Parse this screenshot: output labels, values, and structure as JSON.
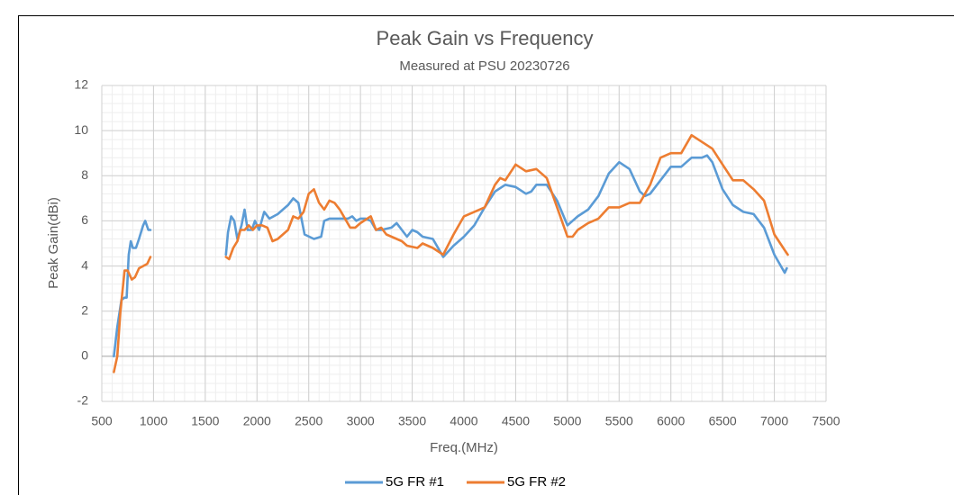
{
  "chart_data": {
    "type": "line",
    "title": "Peak Gain vs Frequency",
    "subtitle": "Measured at PSU 20230726",
    "x_label": "Freq.(MHz)",
    "y_label": "Peak Gain(dBi)",
    "xlim": [
      500,
      7500
    ],
    "xticks": [
      500,
      1000,
      1500,
      2000,
      2500,
      3000,
      3500,
      4000,
      4500,
      5000,
      5500,
      6000,
      6500,
      7000,
      7500
    ],
    "ylim": [
      -2,
      12
    ],
    "yticks": [
      -2,
      0,
      2,
      4,
      6,
      8,
      10,
      12
    ],
    "grid": true,
    "minor_grid": true,
    "legend": "bottom",
    "series": [
      {
        "name": "5G FR #1",
        "color": "#5b9bd5",
        "x": [
          617,
          650,
          690,
          720,
          740,
          760,
          780,
          800,
          830,
          860,
          900,
          920,
          950,
          970,
          null,
          1700,
          1720,
          1750,
          1780,
          1810,
          1850,
          1880,
          1910,
          1950,
          1980,
          2020,
          2070,
          2120,
          2200,
          2300,
          2350,
          2400,
          2460,
          2550,
          2620,
          2650,
          2700,
          2800,
          2880,
          2920,
          2960,
          3000,
          3050,
          3100,
          3150,
          3200,
          3300,
          3350,
          3400,
          3450,
          3500,
          3550,
          3600,
          3700,
          3750,
          3800,
          3900,
          4000,
          4100,
          4200,
          4300,
          4400,
          4500,
          4600,
          4650,
          4700,
          4800,
          4900,
          5000,
          5050,
          5100,
          5200,
          5300,
          5400,
          5500,
          5600,
          5700,
          5750,
          5800,
          5900,
          6000,
          6100,
          6200,
          6300,
          6350,
          6400,
          6500,
          6600,
          6700,
          6800,
          6900,
          7000,
          7100,
          7120
        ],
        "values": [
          0,
          1.3,
          2.5,
          2.6,
          2.6,
          4.5,
          5.1,
          4.8,
          4.8,
          5.2,
          5.8,
          6.0,
          5.6,
          5.6,
          null,
          4.5,
          5.5,
          6.2,
          6.0,
          5.2,
          5.8,
          6.5,
          5.6,
          5.6,
          6.0,
          5.6,
          6.4,
          6.1,
          6.3,
          6.7,
          7.0,
          6.8,
          5.4,
          5.2,
          5.3,
          6.0,
          6.1,
          6.1,
          6.1,
          6.2,
          6.0,
          6.1,
          6.1,
          6.0,
          5.6,
          5.6,
          5.7,
          5.9,
          5.6,
          5.3,
          5.6,
          5.5,
          5.3,
          5.2,
          4.8,
          4.4,
          4.9,
          5.3,
          5.8,
          6.6,
          7.3,
          7.6,
          7.5,
          7.2,
          7.3,
          7.6,
          7.6,
          6.9,
          5.8,
          6.0,
          6.2,
          6.5,
          7.1,
          8.1,
          8.6,
          8.3,
          7.3,
          7.1,
          7.2,
          7.8,
          8.4,
          8.4,
          8.8,
          8.8,
          8.9,
          8.6,
          7.4,
          6.7,
          6.4,
          6.3,
          5.7,
          4.5,
          3.7,
          3.9
        ]
      },
      {
        "name": "5G FR #2",
        "color": "#ed7d31",
        "x": [
          617,
          650,
          680,
          720,
          750,
          790,
          820,
          860,
          900,
          940,
          970,
          null,
          1700,
          1730,
          1770,
          1810,
          1840,
          1880,
          1920,
          1960,
          2000,
          2050,
          2100,
          2150,
          2200,
          2300,
          2350,
          2400,
          2450,
          2500,
          2550,
          2600,
          2650,
          2700,
          2750,
          2800,
          2900,
          2950,
          3000,
          3100,
          3150,
          3200,
          3250,
          3300,
          3400,
          3450,
          3550,
          3600,
          3700,
          3800,
          3900,
          4000,
          4100,
          4200,
          4300,
          4350,
          4400,
          4500,
          4600,
          4700,
          4800,
          4900,
          5000,
          5050,
          5100,
          5200,
          5300,
          5400,
          5500,
          5600,
          5700,
          5800,
          5900,
          6000,
          6100,
          6200,
          6300,
          6400,
          6500,
          6600,
          6700,
          6800,
          6900,
          7000,
          7100,
          7130
        ],
        "values": [
          -0.7,
          0.0,
          2.0,
          3.8,
          3.8,
          3.4,
          3.5,
          3.9,
          4.0,
          4.1,
          4.4,
          null,
          4.4,
          4.3,
          4.8,
          5.1,
          5.6,
          5.6,
          5.8,
          5.6,
          5.8,
          5.8,
          5.7,
          5.1,
          5.2,
          5.6,
          6.2,
          6.1,
          6.4,
          7.2,
          7.4,
          6.8,
          6.5,
          6.9,
          6.8,
          6.5,
          5.7,
          5.7,
          5.9,
          6.2,
          5.6,
          5.7,
          5.4,
          5.3,
          5.1,
          4.9,
          4.8,
          5.0,
          4.8,
          4.5,
          5.4,
          6.2,
          6.4,
          6.6,
          7.6,
          7.9,
          7.8,
          8.5,
          8.2,
          8.3,
          7.9,
          6.6,
          5.3,
          5.3,
          5.6,
          5.9,
          6.1,
          6.6,
          6.6,
          6.8,
          6.8,
          7.6,
          8.8,
          9.0,
          9.0,
          9.8,
          9.5,
          9.2,
          8.5,
          7.8,
          7.8,
          7.4,
          6.9,
          5.4,
          4.7,
          4.5
        ]
      }
    ]
  }
}
